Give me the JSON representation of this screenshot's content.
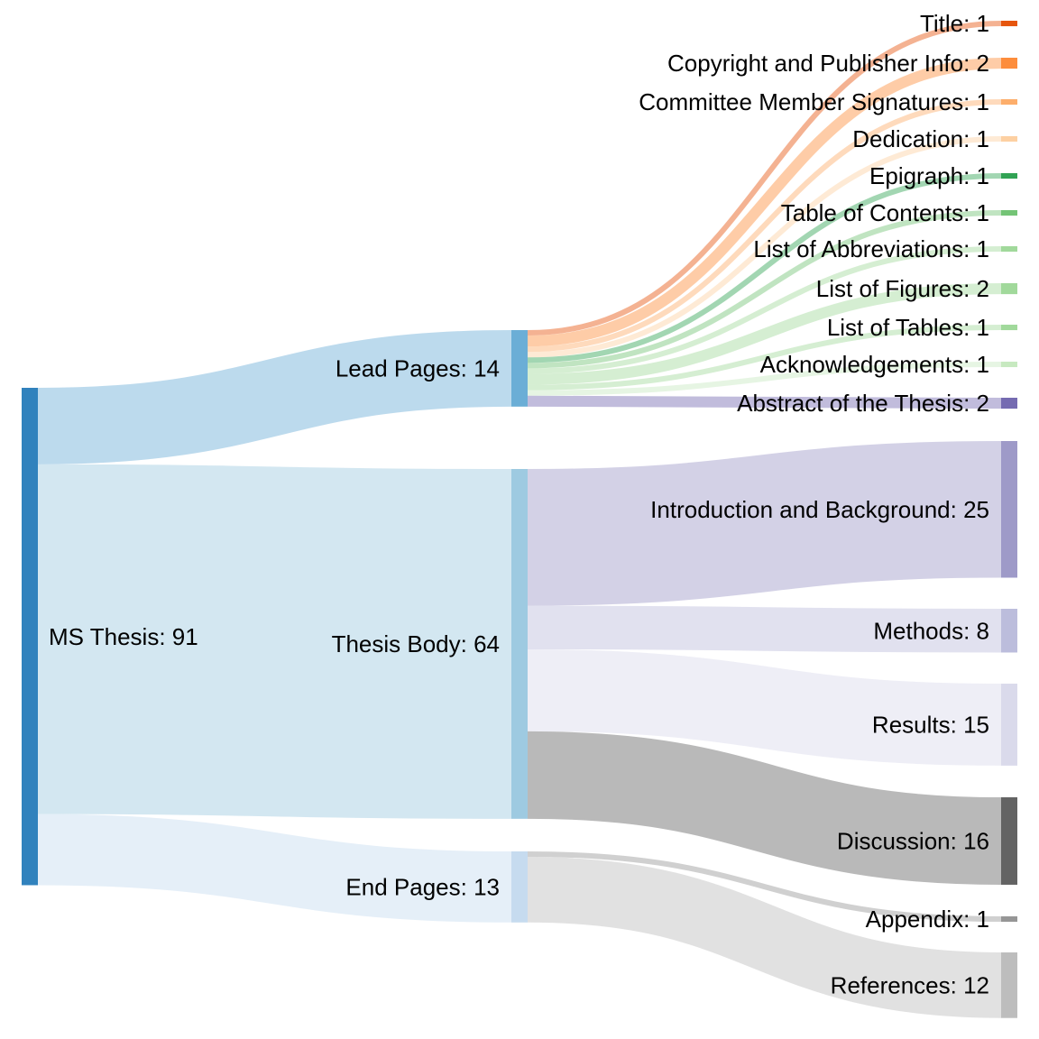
{
  "chart_data": {
    "type": "sankey",
    "nodes": [
      {
        "id": "root",
        "label": "MS Thesis: 91",
        "value": 91,
        "color": "#3182bd"
      },
      {
        "id": "lead",
        "label": "Lead Pages: 14",
        "value": 14,
        "color": "#6baed6"
      },
      {
        "id": "body",
        "label": "Thesis Body: 64",
        "value": 64,
        "color": "#9ecae1"
      },
      {
        "id": "end",
        "label": "End Pages: 13",
        "value": 13,
        "color": "#c6dbef"
      },
      {
        "id": "title",
        "label": "Title: 1",
        "value": 1,
        "color": "#e6550d"
      },
      {
        "id": "copyright",
        "label": "Copyright and Publisher Info: 2",
        "value": 2,
        "color": "#fd8d3c"
      },
      {
        "id": "committee",
        "label": "Committee Member Signatures: 1",
        "value": 1,
        "color": "#fdae6b"
      },
      {
        "id": "dedication",
        "label": "Dedication: 1",
        "value": 1,
        "color": "#fdd0a2"
      },
      {
        "id": "epigraph",
        "label": "Epigraph: 1",
        "value": 1,
        "color": "#31a354"
      },
      {
        "id": "toc",
        "label": "Table of Contents: 1",
        "value": 1,
        "color": "#74c476"
      },
      {
        "id": "loa",
        "label": "List of Abbreviations: 1",
        "value": 1,
        "color": "#a1d99b"
      },
      {
        "id": "lof",
        "label": "List of Figures: 2",
        "value": 2,
        "color": "#a1d99b"
      },
      {
        "id": "lot",
        "label": "List of Tables: 1",
        "value": 1,
        "color": "#a1d99b"
      },
      {
        "id": "ack",
        "label": "Acknowledgements: 1",
        "value": 1,
        "color": "#c7e9c0"
      },
      {
        "id": "abstract",
        "label": "Abstract of the Thesis: 2",
        "value": 2,
        "color": "#756bb1"
      },
      {
        "id": "intro",
        "label": "Introduction and Background: 25",
        "value": 25,
        "color": "#9e9ac8"
      },
      {
        "id": "methods",
        "label": "Methods: 8",
        "value": 8,
        "color": "#bcbddc"
      },
      {
        "id": "results",
        "label": "Results: 15",
        "value": 15,
        "color": "#dadaeb"
      },
      {
        "id": "discussion",
        "label": "Discussion: 16",
        "value": 16,
        "color": "#636363"
      },
      {
        "id": "appendix",
        "label": "Appendix: 1",
        "value": 1,
        "color": "#969696"
      },
      {
        "id": "references",
        "label": "References: 12",
        "value": 12,
        "color": "#bdbdbd"
      }
    ],
    "links": [
      {
        "source": "root",
        "target": "lead",
        "value": 14
      },
      {
        "source": "root",
        "target": "body",
        "value": 64
      },
      {
        "source": "root",
        "target": "end",
        "value": 13
      },
      {
        "source": "lead",
        "target": "title",
        "value": 1
      },
      {
        "source": "lead",
        "target": "copyright",
        "value": 2
      },
      {
        "source": "lead",
        "target": "committee",
        "value": 1
      },
      {
        "source": "lead",
        "target": "dedication",
        "value": 1
      },
      {
        "source": "lead",
        "target": "epigraph",
        "value": 1
      },
      {
        "source": "lead",
        "target": "toc",
        "value": 1
      },
      {
        "source": "lead",
        "target": "loa",
        "value": 1
      },
      {
        "source": "lead",
        "target": "lof",
        "value": 2
      },
      {
        "source": "lead",
        "target": "lot",
        "value": 1
      },
      {
        "source": "lead",
        "target": "ack",
        "value": 1
      },
      {
        "source": "lead",
        "target": "abstract",
        "value": 2
      },
      {
        "source": "body",
        "target": "intro",
        "value": 25
      },
      {
        "source": "body",
        "target": "methods",
        "value": 8
      },
      {
        "source": "body",
        "target": "results",
        "value": 15
      },
      {
        "source": "body",
        "target": "discussion",
        "value": 16
      },
      {
        "source": "end",
        "target": "appendix",
        "value": 1
      },
      {
        "source": "end",
        "target": "references",
        "value": 12
      }
    ]
  }
}
